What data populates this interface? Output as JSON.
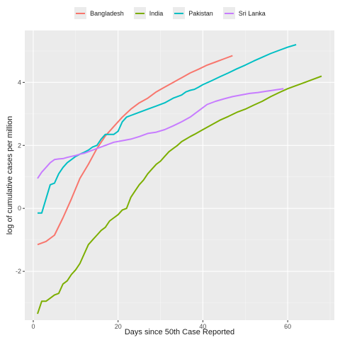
{
  "chart_data": {
    "type": "line",
    "xlabel": "Days since 50th Case Reported",
    "ylabel": "log of cumulative cases per million",
    "xlim": [
      -2,
      71
    ],
    "ylim": [
      -3.55,
      5.65
    ],
    "x_ticks": [
      0,
      20,
      40,
      60
    ],
    "y_ticks": [
      -2,
      0,
      2,
      4
    ],
    "grid": true,
    "legend_position": "top",
    "series": [
      {
        "name": "Bangladesh",
        "color": "#F8766D",
        "x": [
          1,
          3,
          5,
          7,
          9,
          11,
          13,
          15,
          17,
          19,
          21,
          23,
          25,
          27,
          29,
          31,
          33,
          35,
          37,
          39,
          41,
          43,
          45,
          47
        ],
        "y": [
          -1.15,
          -1.05,
          -0.85,
          -0.3,
          0.3,
          0.95,
          1.4,
          1.9,
          2.3,
          2.6,
          2.9,
          3.15,
          3.35,
          3.5,
          3.7,
          3.85,
          4.0,
          4.15,
          4.3,
          4.42,
          4.55,
          4.65,
          4.75,
          4.85
        ]
      },
      {
        "name": "India",
        "color": "#7CAE00",
        "x": [
          1,
          2,
          3,
          4,
          5,
          6,
          7,
          8,
          9,
          10,
          11,
          12,
          13,
          14,
          15,
          16,
          17,
          18,
          19,
          20,
          21,
          22,
          23,
          24,
          25,
          26,
          27,
          28,
          29,
          30,
          31,
          32,
          33,
          34,
          35,
          36,
          37,
          38,
          40,
          42,
          44,
          46,
          48,
          50,
          52,
          54,
          56,
          58,
          60,
          62,
          64,
          66,
          68
        ],
        "y": [
          -3.35,
          -2.95,
          -2.95,
          -2.85,
          -2.75,
          -2.7,
          -2.4,
          -2.3,
          -2.1,
          -1.95,
          -1.75,
          -1.45,
          -1.15,
          -1.0,
          -0.85,
          -0.7,
          -0.6,
          -0.4,
          -0.3,
          -0.2,
          -0.05,
          0.0,
          0.35,
          0.55,
          0.75,
          0.9,
          1.1,
          1.25,
          1.4,
          1.5,
          1.65,
          1.8,
          1.9,
          2.0,
          2.12,
          2.2,
          2.28,
          2.35,
          2.5,
          2.65,
          2.8,
          2.92,
          3.05,
          3.15,
          3.28,
          3.4,
          3.55,
          3.68,
          3.8,
          3.9,
          4.0,
          4.1,
          4.2
        ]
      },
      {
        "name": "Pakistan",
        "color": "#00BFC4",
        "x": [
          1,
          2,
          3,
          4,
          5,
          6,
          7,
          8,
          9,
          10,
          11,
          12,
          13,
          14,
          15,
          16,
          17,
          18,
          19,
          20,
          21,
          22,
          23,
          25,
          27,
          29,
          31,
          33,
          35,
          36,
          37,
          38,
          39,
          40,
          42,
          44,
          46,
          48,
          50,
          52,
          54,
          56,
          58,
          60,
          62
        ],
        "y": [
          -0.15,
          -0.15,
          0.3,
          0.75,
          0.8,
          1.1,
          1.3,
          1.45,
          1.55,
          1.65,
          1.72,
          1.78,
          1.85,
          1.95,
          2.0,
          2.2,
          2.35,
          2.35,
          2.35,
          2.45,
          2.75,
          2.9,
          2.95,
          3.05,
          3.15,
          3.25,
          3.35,
          3.5,
          3.6,
          3.7,
          3.75,
          3.78,
          3.85,
          3.93,
          4.05,
          4.18,
          4.3,
          4.43,
          4.55,
          4.68,
          4.8,
          4.92,
          5.02,
          5.12,
          5.2
        ]
      },
      {
        "name": "Sri Lanka",
        "color": "#C77CFF",
        "x": [
          1,
          2,
          3,
          4,
          5,
          6,
          7,
          8,
          9,
          10,
          11,
          12,
          13,
          14,
          15,
          17,
          19,
          21,
          23,
          25,
          27,
          29,
          31,
          33,
          35,
          37,
          39,
          41,
          43,
          45,
          47,
          49,
          51,
          53,
          55,
          57,
          59
        ],
        "y": [
          0.95,
          1.15,
          1.3,
          1.45,
          1.55,
          1.57,
          1.58,
          1.62,
          1.65,
          1.68,
          1.72,
          1.75,
          1.8,
          1.85,
          1.9,
          2.0,
          2.1,
          2.15,
          2.2,
          2.28,
          2.38,
          2.42,
          2.5,
          2.62,
          2.75,
          2.9,
          3.1,
          3.3,
          3.4,
          3.48,
          3.55,
          3.6,
          3.65,
          3.68,
          3.72,
          3.76,
          3.8
        ]
      }
    ]
  }
}
